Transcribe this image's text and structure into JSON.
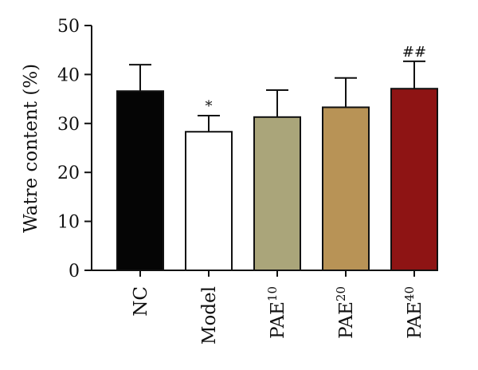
{
  "chart_data": {
    "type": "bar",
    "title": "",
    "xlabel": "",
    "ylabel": "Watre content (%)",
    "ylim": [
      0,
      50
    ],
    "yticks": [
      0,
      10,
      20,
      30,
      40,
      50
    ],
    "grid": false,
    "categories": [
      {
        "base": "NC",
        "sup": ""
      },
      {
        "base": "Model",
        "sup": ""
      },
      {
        "base": "PAE",
        "sup": "10"
      },
      {
        "base": "PAE",
        "sup": "20"
      },
      {
        "base": "PAE",
        "sup": "40"
      }
    ],
    "values": [
      36.6,
      28.3,
      31.3,
      33.3,
      37.1
    ],
    "errors": [
      5.4,
      3.3,
      5.5,
      6.0,
      5.6
    ],
    "significance": [
      "",
      "*",
      "",
      "",
      "##"
    ],
    "colors": [
      "#050505",
      "#ffffff",
      "#aaa57a",
      "#b89356",
      "#8e1414"
    ]
  }
}
